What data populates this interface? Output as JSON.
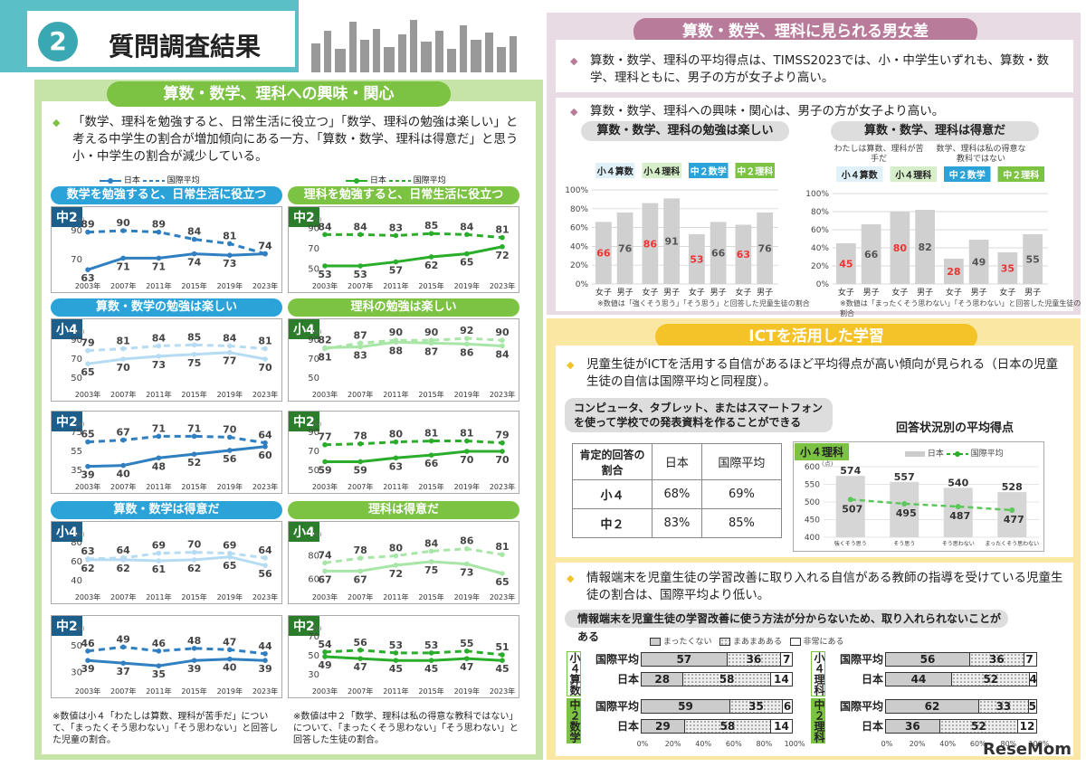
{
  "header": {
    "number": "2",
    "title": "質問調査結果"
  },
  "left": {
    "banner": "算数・数学、理科への興味・関心",
    "bullet": "「数学、理科を勉強すると、日常生活に役立つ」「数学、理科の勉強は楽しい」と考える中学生の割合が増加傾向にある一方、「算数・数学、理科は得意だ」と思う小・中学生の割合が減少している。",
    "legend": {
      "japan": "日本",
      "intl": "国際平均"
    },
    "years": [
      "2003年",
      "2007年",
      "2011年",
      "2015年",
      "2019年",
      "2023年"
    ],
    "sections": [
      {
        "title": "数学を勉強すると、日常生活に役立つ",
        "kind": "B",
        "charts": [
          {
            "grade": "中2",
            "ticks": [
              90,
              70
            ],
            "ymin": 60,
            "ymax": 95,
            "japan": [
              63,
              71,
              71,
              74,
              73,
              74
            ],
            "intl": [
              89,
              90,
              89,
              84,
              81,
              74
            ]
          }
        ]
      },
      {
        "title": "理科を勉強すると、日常生活に役立つ",
        "kind": "G",
        "charts": [
          {
            "grade": "中2",
            "ticks": [
              90,
              70,
              50
            ],
            "ymin": 45,
            "ymax": 95,
            "japan": [
              53,
              53,
              57,
              62,
              65,
              72
            ],
            "intl": [
              84,
              84,
              83,
              85,
              84,
              81
            ]
          }
        ]
      },
      {
        "title": "算数・数学の勉強は楽しい",
        "kind": "B",
        "charts": [
          {
            "grade": "小4",
            "ticks": [
              90,
              70,
              50
            ],
            "ymin": 45,
            "ymax": 95,
            "japan": [
              65,
              70,
              73,
              75,
              77,
              70
            ],
            "intl": [
              79,
              81,
              84,
              85,
              84,
              81
            ]
          },
          {
            "grade": "中2",
            "ticks": [
              75,
              55,
              35
            ],
            "ymin": 30,
            "ymax": 80,
            "japan": [
              39,
              40,
              48,
              52,
              56,
              60
            ],
            "intl": [
              65,
              67,
              71,
              71,
              70,
              64
            ]
          }
        ]
      },
      {
        "title": "理科の勉強は楽しい",
        "kind": "G",
        "charts": [
          {
            "grade": "小4",
            "ticks": [
              90,
              70,
              50
            ],
            "ymin": 45,
            "ymax": 95,
            "japan": [
              82,
              83,
              88,
              87,
              86,
              84
            ],
            "intl": [
              81,
              87,
              90,
              90,
              92,
              90
            ]
          },
          {
            "grade": "中2",
            "ticks": [
              90,
              70,
              50
            ],
            "ymin": 45,
            "ymax": 95,
            "japan": [
              59,
              59,
              63,
              66,
              70,
              70
            ],
            "intl": [
              77,
              78,
              80,
              81,
              81,
              79
            ]
          }
        ]
      },
      {
        "title": "算数・数学は得意だ",
        "kind": "B",
        "charts": [
          {
            "grade": "小4",
            "ticks": [
              80,
              60,
              40
            ],
            "ymin": 35,
            "ymax": 85,
            "japan": [
              62,
              62,
              61,
              62,
              65,
              56
            ],
            "intl": [
              63,
              64,
              69,
              70,
              69,
              64
            ]
          },
          {
            "grade": "中2",
            "ticks": [
              50,
              30
            ],
            "ymin": 25,
            "ymax": 60,
            "japan": [
              39,
              37,
              35,
              39,
              40,
              39
            ],
            "intl": [
              46,
              49,
              46,
              48,
              47,
              44
            ]
          }
        ]
      },
      {
        "title": "理科は得意だ",
        "kind": "G",
        "charts": [
          {
            "grade": "小4",
            "ticks": [
              80,
              60
            ],
            "ymin": 55,
            "ymax": 95,
            "japan": [
              67,
              67,
              72,
              75,
              73,
              65
            ],
            "intl": [
              74,
              78,
              80,
              84,
              86,
              81
            ]
          },
          {
            "grade": "中2",
            "ticks": [
              70,
              50,
              30
            ],
            "ymin": 25,
            "ymax": 75,
            "japan": [
              49,
              47,
              45,
              45,
              47,
              45
            ],
            "intl": [
              54,
              56,
              53,
              53,
              55,
              51
            ]
          }
        ]
      }
    ],
    "note1": "※数値は小４「わたしは算数、理科が苦手だ」について、「まったくそう思わない」「そう思わない」と回答した児童の割合。",
    "note2": "※数値は中２「数学、理科は私の得意な教科ではない」について、「まったくそう思わない」「そう思わない」と回答した生徒の割合。"
  },
  "gender": {
    "banner": "算数・数学、理科に見られる男女差",
    "bullet1": "算数・数学、理科の平均得点は、TIMSS2023では、小・中学生いずれも、算数・数学、理科ともに、男子の方が女子より高い。",
    "bullet2": "算数・数学、理科への興味・関心は、男子の方が女子より高い。",
    "chart1": {
      "title": "算数・数学、理科の勉強は楽しい",
      "groups": [
        "小４算数",
        "小４理科",
        "中２数学",
        "中２理科"
      ],
      "female": [
        66,
        86,
        53,
        63
      ],
      "male": [
        76,
        91,
        66,
        76
      ],
      "note": "※数値は「強くそう思う」「そう思う」と回答した児童生徒の割合"
    },
    "chart2": {
      "title": "算数・数学、理科は得意だ",
      "sub1": "わたしは算数、理科が苦手だ",
      "sub2": "数学、理科は私の得意な教科ではない",
      "groups": [
        "小４算数",
        "小４理科",
        "中２数学",
        "中２理科"
      ],
      "female": [
        45,
        80,
        28,
        35
      ],
      "male": [
        66,
        82,
        49,
        55
      ],
      "note": "※数値は「まったくそう思わない」「そう思わない」と回答した児童生徒の割合"
    },
    "axis": [
      "100%",
      "80%",
      "60%",
      "40%",
      "20%",
      "0%"
    ],
    "sex": {
      "f": "女子",
      "m": "男子"
    }
  },
  "ict": {
    "banner": "ICTを活用した学習",
    "bullet1": "児童生徒がICTを活用する自信があるほど平均得点が高い傾向が見られる（日本の児童生徒の自信は国際平均と同程度）。",
    "box": "コンピュータ、タブレット、またはスマートフォンを使って学校での発表資料を作ることができる",
    "table": {
      "h1": "肯定的回答の割合",
      "h2": "日本",
      "h3": "国際平均",
      "rows": [
        [
          "小４",
          "68%",
          "69%"
        ],
        [
          "中２",
          "83%",
          "85%"
        ]
      ]
    },
    "scoreTitle": "回答状況別の平均得点",
    "scoreTag": "小４理科",
    "scoreLegend": {
      "japan": "日本",
      "intl": "国際平均"
    },
    "scoreCats": [
      "強くそう思う",
      "そう思う",
      "そう思わない",
      "まったくそう思わない"
    ],
    "scoreJapan": [
      574,
      557,
      540,
      528
    ],
    "scoreIntl": [
      507,
      495,
      487,
      477
    ],
    "scoreTicks": [
      "600",
      "550",
      "500",
      "450",
      "400"
    ],
    "scoreUnit": "(点)",
    "bullet2": "情報端末を児童生徒の学習改善に取り入れる自信がある教師の指導を受けている児童生徒の割合は、国際平均より低い。",
    "box2": "情報端末を児童生徒の学習改善に使う方法が分からないため、取り入れられないことがある",
    "legend3": [
      "まったくない",
      "まあまあある",
      "非常にある"
    ],
    "stackGroups": [
      {
        "label": "小４算数",
        "rows": [
          [
            "国際平均",
            57,
            36,
            7
          ],
          [
            "日本",
            28,
            58,
            14
          ]
        ]
      },
      {
        "label": "中２数学",
        "rows": [
          [
            "国際平均",
            59,
            35,
            6
          ],
          [
            "日本",
            29,
            58,
            14
          ]
        ]
      },
      {
        "label": "小４理科",
        "rows": [
          [
            "国際平均",
            56,
            36,
            7
          ],
          [
            "日本",
            44,
            52,
            4
          ]
        ]
      },
      {
        "label": "中２理科",
        "rows": [
          [
            "国際平均",
            62,
            33,
            5
          ],
          [
            "日本",
            36,
            52,
            12
          ]
        ]
      }
    ],
    "pctAxis": [
      "0%",
      "20%",
      "40%",
      "60%",
      "80%",
      "100%"
    ]
  },
  "watermark": "ReseMom",
  "colors": {
    "green": "#7cc243",
    "blue": "#2ba3d9",
    "japanBlue": "#2f7fc1",
    "intlBlue": "#2f7fc1",
    "lightBlue": "#bde3f5",
    "japanGreen": "#2aad2a",
    "lightGreen": "#a8e0a8"
  }
}
